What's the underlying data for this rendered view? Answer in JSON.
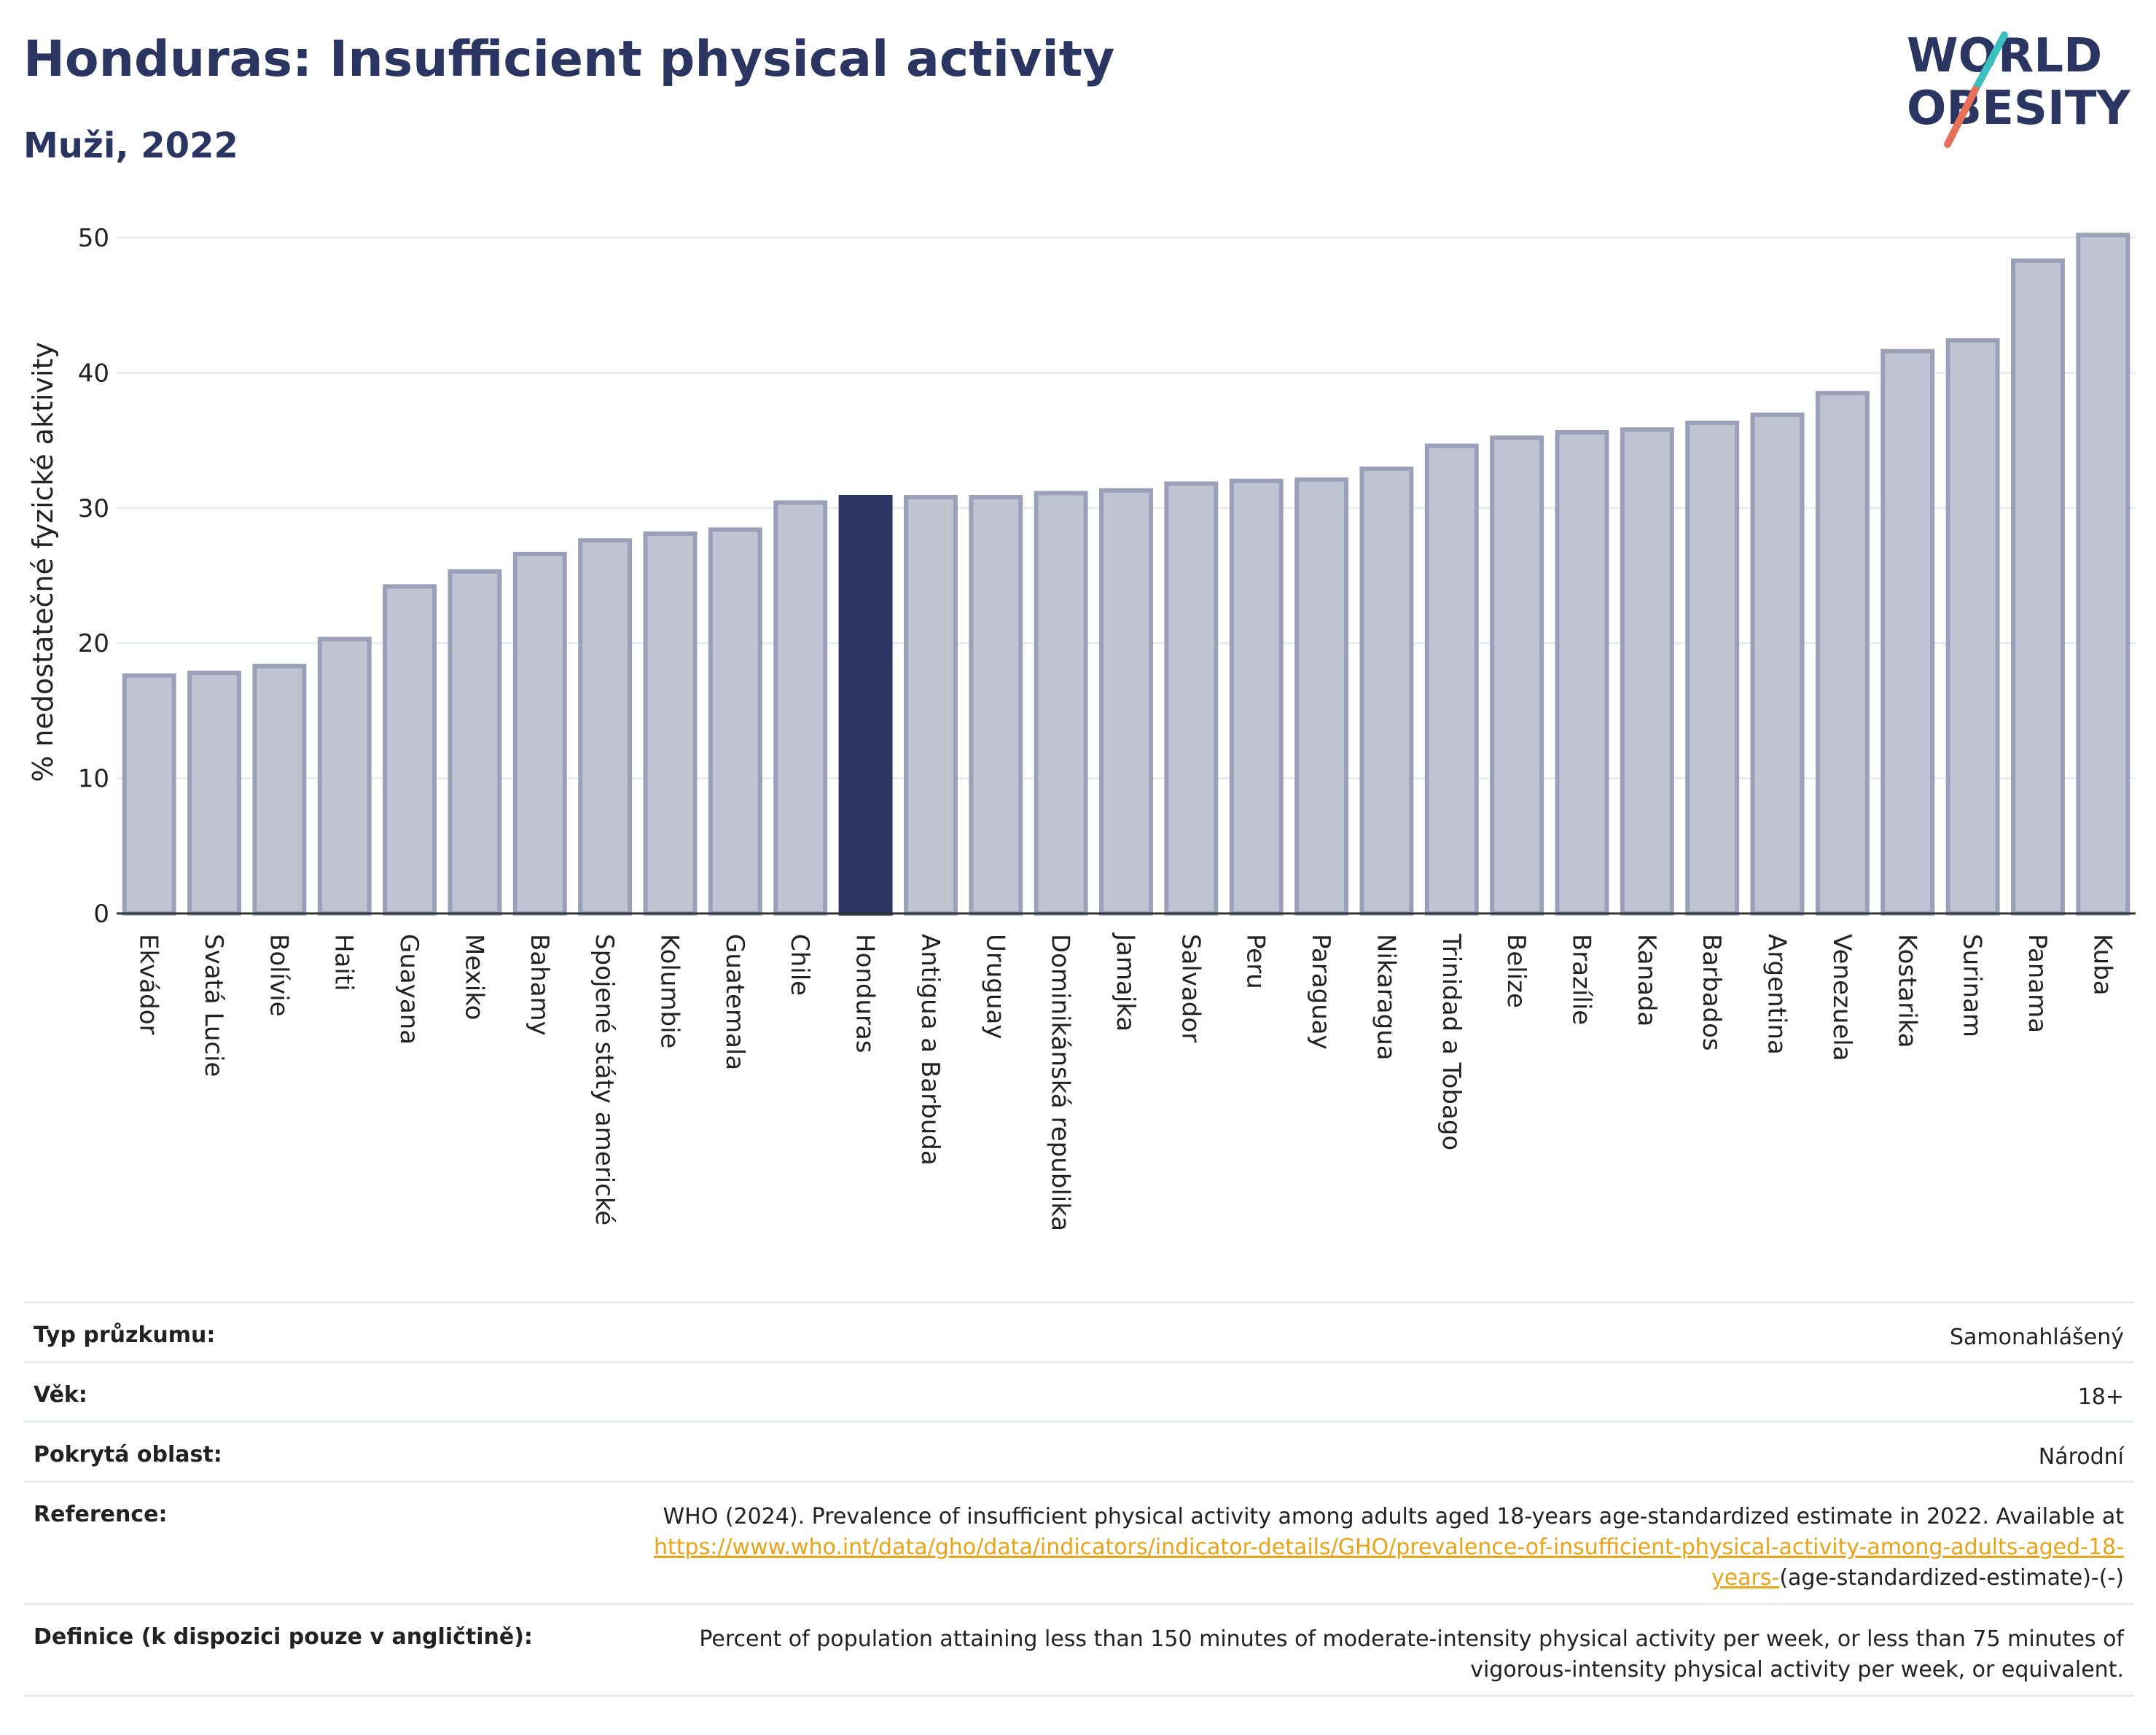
{
  "header": {
    "title": "Honduras: Insufficient physical activity",
    "subtitle": "Muži, 2022"
  },
  "logo": {
    "line1": "WORLD",
    "line2": "OBESITY",
    "colors": {
      "text": "#2a3561",
      "slash_teal": "#3bbfbf",
      "slash_coral": "#e8705a"
    }
  },
  "colors": {
    "bar": "#c0c3d1",
    "bar_border": "#9aa0b8",
    "highlight": "#2a3561",
    "grid": "#e8ebf3"
  },
  "chart_data": {
    "type": "bar",
    "ylabel": "% nedostatečné fyzické aktivity",
    "ylim": [
      0,
      52
    ],
    "yticks": [
      0,
      10,
      20,
      30,
      40,
      50
    ],
    "grid": true,
    "highlight": "Honduras",
    "categories": [
      "Ekvádor",
      "Svatá Lucie",
      "Bolívie",
      "Haiti",
      "Guayana",
      "Mexiko",
      "Bahamy",
      "Spojené státy americké",
      "Kolumbie",
      "Guatemala",
      "Chile",
      "Honduras",
      "Antigua a Barbuda",
      "Uruguay",
      "Dominikánská republika",
      "Jamajka",
      "Salvador",
      "Peru",
      "Paraguay",
      "Nikaragua",
      "Trinidad a Tobago",
      "Belize",
      "Brazílie",
      "Kanada",
      "Barbados",
      "Argentina",
      "Venezuela",
      "Kostarika",
      "Surinam",
      "Panama",
      "Kuba"
    ],
    "values": [
      17.6,
      17.8,
      18.3,
      20.3,
      24.2,
      25.3,
      26.6,
      27.6,
      28.1,
      28.4,
      30.4,
      30.8,
      30.8,
      30.8,
      31.1,
      31.3,
      31.8,
      32.0,
      32.1,
      32.9,
      34.6,
      35.2,
      35.6,
      35.8,
      36.3,
      36.9,
      38.5,
      41.6,
      42.4,
      48.3,
      50.2
    ]
  },
  "meta": {
    "rows": [
      {
        "key": "Typ průzkumu:",
        "value": "Samonahlášený"
      },
      {
        "key": "Věk:",
        "value": "18+"
      },
      {
        "key": "Pokrytá oblast:",
        "value": "Národní"
      }
    ],
    "reference": {
      "key": "Reference:",
      "text": "WHO (2024). Prevalence of insufficient physical activity among adults aged 18-years age-standardized estimate in 2022. Available at ",
      "link": "https://www.who.int/data/gho/data/indicators/indicator-details/GHO/prevalence-of-insufficient-physical-activity-among-adults-aged-18-years-",
      "tail": "(age-standardized-estimate)-(-)"
    },
    "definition": {
      "key": "Definice (k dispozici pouze v angličtině):",
      "value": "Percent of population attaining less than 150 minutes of moderate-intensity physical activity per week, or less than 75 minutes of vigorous-intensity physical activity per week, or equivalent."
    }
  }
}
